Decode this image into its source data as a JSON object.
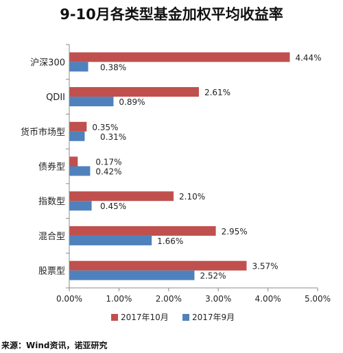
{
  "chart_data": {
    "type": "bar",
    "orientation": "horizontal",
    "title": "9-10月各类型基金加权平均收益率",
    "categories": [
      "沪深300",
      "QDII",
      "货币市场型",
      "债券型",
      "指数型",
      "混合型",
      "股票型"
    ],
    "series": [
      {
        "name": "2017年10月",
        "color": "#c0504d",
        "values": [
          4.44,
          2.61,
          0.35,
          0.17,
          2.1,
          2.95,
          3.57
        ],
        "labels": [
          "4.44%",
          "2.61%",
          "0.35%",
          "0.17%",
          "2.10%",
          "2.95%",
          "3.57%"
        ]
      },
      {
        "name": "2017年9月",
        "color": "#4f81bd",
        "values": [
          0.38,
          0.89,
          0.31,
          0.42,
          0.45,
          1.66,
          2.52
        ],
        "labels": [
          "0.38%",
          "0.89%",
          "0.31%",
          "0.42%",
          "0.45%",
          "1.66%",
          "2.52%"
        ]
      }
    ],
    "xlim": [
      0,
      5
    ],
    "x_ticks": [
      "0.00%",
      "1.00%",
      "2.00%",
      "3.00%",
      "4.00%",
      "5.00%"
    ],
    "grid": false,
    "legend_position": "bottom"
  },
  "source_text": "来源：Wind资讯，诺亚研究"
}
